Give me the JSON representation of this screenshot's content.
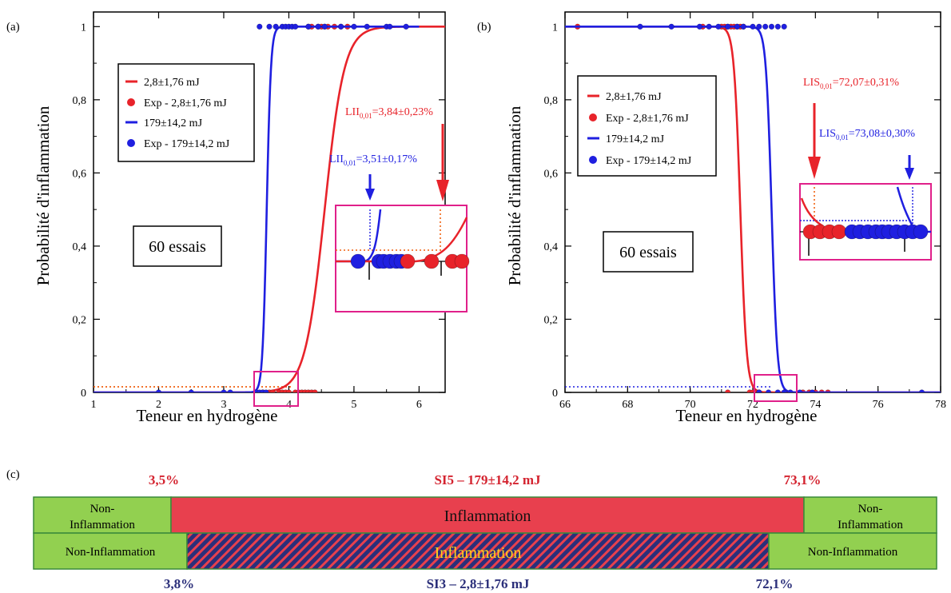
{
  "colors": {
    "red": "#e8232a",
    "blue": "#1f1fe0",
    "orange": "#f06010",
    "pink": "#e0208a",
    "green": "#92d050",
    "green_border": "#3a8a3a",
    "band_red": "#e8404e",
    "navy": "#2b2f7a",
    "yellow": "#ffd21e"
  },
  "panel_a": {
    "label": "(a)",
    "ylabel": "Probabilité d'inflammation",
    "xlabel": "Teneur en hydrogène",
    "ticks_x": [
      "1",
      "2",
      "3",
      "4",
      "5",
      "6"
    ],
    "ticks_y": [
      "0",
      "0,2",
      "0,4",
      "0,6",
      "0,8",
      "1"
    ],
    "legend": [
      "2,8±1,76 mJ",
      "Exp - 2,8±1,76 mJ",
      "179±14,2 mJ",
      "Exp - 179±14,2 mJ"
    ],
    "trials_label": "60 essais",
    "annot_red": {
      "prefix": "LII",
      "sub": "0,01",
      "suffix": "=3,84±0,23%"
    },
    "annot_blue": {
      "prefix": "LII",
      "sub": "0,01",
      "suffix": "=3,51±0,17%"
    }
  },
  "panel_b": {
    "label": "(b)",
    "ylabel": "Probabilité d'inflammation",
    "xlabel": "Teneur en hydrogène",
    "ticks_x": [
      "66",
      "68",
      "70",
      "72",
      "74",
      "76",
      "78"
    ],
    "ticks_y": [
      "0",
      "0,2",
      "0,4",
      "0,6",
      "0,8",
      "1"
    ],
    "legend": [
      "2,8±1,76 mJ",
      "Exp - 2,8±1,76 mJ",
      "179±14,2 mJ",
      "Exp - 179±14,2 mJ"
    ],
    "trials_label": "60 essais",
    "annot_red": {
      "prefix": "LIS",
      "sub": "0,01",
      "suffix": "=72,07±0,31%"
    },
    "annot_blue": {
      "prefix": "LIS",
      "sub": "0,01",
      "suffix": "=73,08±0,30%"
    }
  },
  "panel_c": {
    "label": "(c)",
    "top_left_value": "3,5%",
    "top_title": "SI5 – 179±14,2 mJ",
    "top_right_value": "73,1%",
    "row1_left_line1": "Non-",
    "row1_left_line2": "Inflammation",
    "row1_center": "Inflammation",
    "row1_right_line1": "Non-",
    "row1_right_line2": "Inflammation",
    "row2_left": "Non-Inflammation",
    "row2_center": "Inflammation",
    "row2_right": "Non-Inflammation",
    "bottom_left_value": "3,8%",
    "bottom_title": "SI3 – 2,8±1,76 mJ",
    "bottom_right_value": "72,1%"
  },
  "chart_data": [
    {
      "type": "scatter",
      "xlabel": "Teneur en hydrogène",
      "ylabel": "Probabilité d'inflammation",
      "xlim": [
        1,
        6.4
      ],
      "ylim": [
        0,
        1.04
      ],
      "series": [
        {
          "name": "2,8±1,76 mJ",
          "kind": "logistic-fit",
          "x50": 4.55,
          "scale": 0.15,
          "direction": "increasing",
          "x_range": [
            1,
            6.4
          ]
        },
        {
          "name": "Exp - 2,8±1,76 mJ",
          "points": [
            [
              3.5,
              0
            ],
            [
              3.6,
              0
            ],
            [
              3.7,
              0
            ],
            [
              3.75,
              0
            ],
            [
              3.85,
              0
            ],
            [
              3.9,
              0
            ],
            [
              3.95,
              0
            ],
            [
              4.0,
              0
            ],
            [
              4.1,
              0
            ],
            [
              4.15,
              0
            ],
            [
              4.2,
              0
            ],
            [
              4.25,
              0
            ],
            [
              4.3,
              0
            ],
            [
              4.35,
              0
            ],
            [
              4.4,
              0
            ],
            [
              4.3,
              1
            ],
            [
              4.35,
              1
            ],
            [
              4.45,
              1
            ],
            [
              4.5,
              1
            ],
            [
              4.55,
              1
            ],
            [
              4.6,
              1
            ],
            [
              4.7,
              1
            ],
            [
              4.8,
              1
            ],
            [
              4.9,
              1
            ]
          ]
        },
        {
          "name": "179±14,2 mJ",
          "kind": "logistic-fit",
          "x50": 3.66,
          "scale": 0.032,
          "direction": "increasing",
          "x_range": [
            1,
            6
          ]
        },
        {
          "name": "Exp - 179±14,2 mJ",
          "points": [
            [
              2.0,
              0
            ],
            [
              2.5,
              0
            ],
            [
              3.0,
              0
            ],
            [
              3.1,
              0
            ],
            [
              3.5,
              0
            ],
            [
              3.55,
              0
            ],
            [
              3.6,
              0
            ],
            [
              3.65,
              0
            ],
            [
              3.55,
              1
            ],
            [
              3.7,
              1
            ],
            [
              3.8,
              1
            ],
            [
              3.9,
              1
            ],
            [
              3.95,
              1
            ],
            [
              4.0,
              1
            ],
            [
              4.05,
              1
            ],
            [
              4.1,
              1
            ],
            [
              4.3,
              1
            ],
            [
              4.45,
              1
            ],
            [
              4.55,
              1
            ],
            [
              4.8,
              1
            ],
            [
              5.0,
              1
            ],
            [
              5.2,
              1
            ],
            [
              5.5,
              1
            ],
            [
              5.55,
              1
            ],
            [
              5.8,
              1
            ]
          ]
        }
      ],
      "annotations": [
        "LII0,01=3,84±0,23%",
        "LII0,01=3,51±0,17%",
        "60 essais"
      ]
    },
    {
      "type": "scatter",
      "xlabel": "Teneur en hydrogène",
      "ylabel": "Probabilité d'inflammation",
      "xlim": [
        66,
        78
      ],
      "ylim": [
        0,
        1.04
      ],
      "series": [
        {
          "name": "2,8±1,76 mJ",
          "kind": "logistic-fit",
          "x50": 71.6,
          "scale": 0.1,
          "direction": "decreasing",
          "x_range": [
            66,
            78
          ]
        },
        {
          "name": "Exp - 2,8±1,76 mJ",
          "points": [
            [
              66.4,
              1
            ],
            [
              70.4,
              1
            ],
            [
              71.0,
              1
            ],
            [
              71.1,
              1
            ],
            [
              71.2,
              1
            ],
            [
              71.3,
              1
            ],
            [
              71.4,
              1
            ],
            [
              71.5,
              1
            ],
            [
              71.6,
              1
            ],
            [
              71.7,
              1
            ],
            [
              71.2,
              0
            ],
            [
              71.9,
              0
            ],
            [
              72.0,
              0
            ],
            [
              72.1,
              0
            ],
            [
              72.2,
              0
            ],
            [
              73.6,
              0
            ],
            [
              73.8,
              0
            ],
            [
              74.0,
              0
            ],
            [
              74.2,
              0
            ],
            [
              74.4,
              0
            ]
          ]
        },
        {
          "name": "179±14,2 mJ",
          "kind": "logistic-fit",
          "x50": 72.6,
          "scale": 0.09,
          "direction": "decreasing",
          "x_range": [
            66,
            78
          ]
        },
        {
          "name": "Exp - 179±14,2 mJ",
          "points": [
            [
              68.4,
              1
            ],
            [
              69.4,
              1
            ],
            [
              70.3,
              1
            ],
            [
              70.6,
              1
            ],
            [
              70.9,
              1
            ],
            [
              71.2,
              1
            ],
            [
              71.5,
              1
            ],
            [
              71.7,
              1
            ],
            [
              72.0,
              1
            ],
            [
              72.2,
              1
            ],
            [
              72.4,
              1
            ],
            [
              72.6,
              1
            ],
            [
              72.8,
              1
            ],
            [
              73.0,
              1
            ],
            [
              72.2,
              0
            ],
            [
              72.5,
              0
            ],
            [
              72.8,
              0
            ],
            [
              73.0,
              0
            ],
            [
              73.2,
              0
            ],
            [
              73.5,
              0
            ],
            [
              73.9,
              0
            ],
            [
              77.4,
              0
            ]
          ]
        }
      ],
      "annotations": [
        "LIS0,01=72,07±0,31%",
        "LIS0,01=73,08±0,30%",
        "60 essais"
      ]
    }
  ]
}
